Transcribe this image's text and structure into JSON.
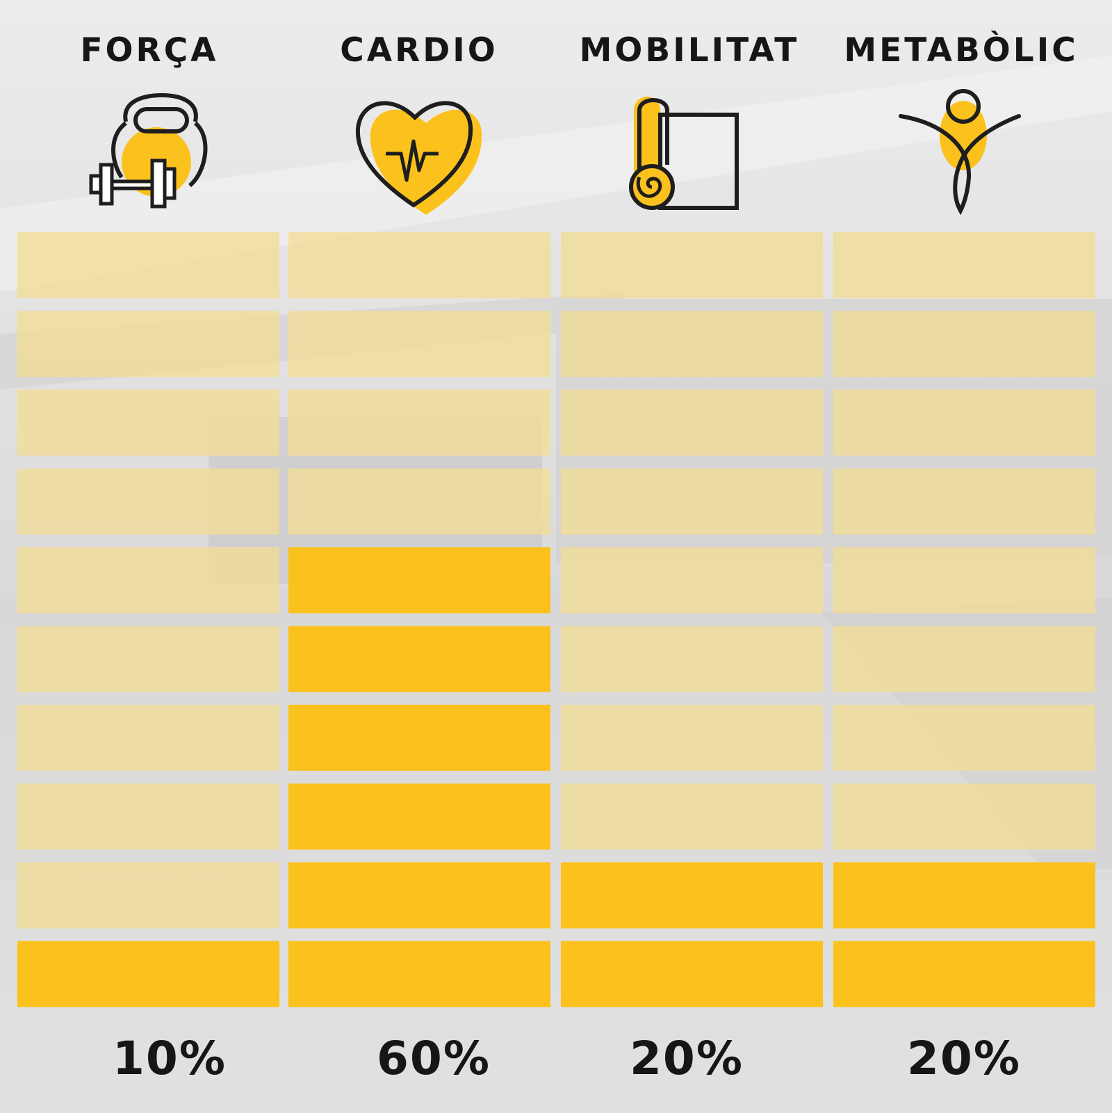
{
  "colors": {
    "filled": "#fbc11d",
    "empty": "#f3dc96",
    "text": "#161616",
    "icon_stroke": "#1e1e1e"
  },
  "chart_data": {
    "type": "bar",
    "segments_per_column": 10,
    "categories": [
      "FORÇA",
      "CARDIO",
      "MOBILITAT",
      "METABÒLIC"
    ],
    "values": [
      10,
      60,
      20,
      20
    ],
    "value_labels": [
      "10%",
      "60%",
      "20%",
      "20%"
    ],
    "ylim": [
      0,
      100
    ],
    "icons": [
      "kettlebell-dumbbell-icon",
      "heart-pulse-icon",
      "yoga-mat-icon",
      "stretching-person-icon"
    ]
  }
}
